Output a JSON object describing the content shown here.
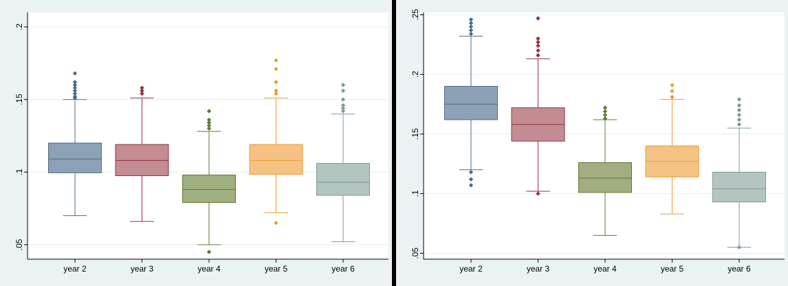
{
  "chart_data": [
    {
      "type": "box",
      "categories": [
        "year 2",
        "year 3",
        "year 4",
        "year 5",
        "year 6"
      ],
      "colors": [
        "#4a6b8e",
        "#91323f",
        "#5e7a32",
        "#f09a2e",
        "#7f9a93"
      ],
      "fills": [
        "#8ea1b6",
        "#c38c93",
        "#9faf81",
        "#f5c285",
        "#b4c4c0"
      ],
      "ylim": [
        0.04,
        0.21
      ],
      "yticks": [
        {
          "v": 0.05,
          "label": ".05"
        },
        {
          "v": 0.1,
          "label": ".1"
        },
        {
          "v": 0.15,
          "label": ".15"
        },
        {
          "v": 0.2,
          "label": ".2"
        }
      ],
      "grid": true,
      "boxes": [
        {
          "min": 0.07,
          "q1": 0.0995,
          "median": 0.109,
          "q3": 0.12,
          "max": 0.15,
          "outliers": [
            0.151,
            0.152,
            0.154,
            0.156,
            0.158,
            0.16,
            0.162,
            0.168
          ]
        },
        {
          "min": 0.066,
          "q1": 0.0975,
          "median": 0.108,
          "q3": 0.119,
          "max": 0.151,
          "outliers": [
            0.154,
            0.156,
            0.158
          ]
        },
        {
          "min": 0.05,
          "q1": 0.079,
          "median": 0.088,
          "q3": 0.098,
          "max": 0.128,
          "outliers": [
            0.045,
            0.13,
            0.132,
            0.134,
            0.136,
            0.142
          ]
        },
        {
          "min": 0.072,
          "q1": 0.0985,
          "median": 0.108,
          "q3": 0.119,
          "max": 0.151,
          "outliers": [
            0.065,
            0.154,
            0.156,
            0.162,
            0.171,
            0.177
          ]
        },
        {
          "min": 0.052,
          "q1": 0.084,
          "median": 0.093,
          "q3": 0.106,
          "max": 0.14,
          "outliers": [
            0.142,
            0.144,
            0.146,
            0.15,
            0.156,
            0.16
          ]
        }
      ]
    },
    {
      "type": "box",
      "categories": [
        "year 2",
        "year 3",
        "year 4",
        "year 5",
        "year 6"
      ],
      "colors": [
        "#4a6b8e",
        "#91323f",
        "#5e7a32",
        "#f09a2e",
        "#7f9a93"
      ],
      "fills": [
        "#8ea1b6",
        "#c38c93",
        "#9faf81",
        "#f5c285",
        "#b4c4c0"
      ],
      "ylim": [
        0.045,
        0.252
      ],
      "yticks": [
        {
          "v": 0.05,
          "label": ".05"
        },
        {
          "v": 0.1,
          "label": ".1"
        },
        {
          "v": 0.15,
          "label": ".15"
        },
        {
          "v": 0.2,
          "label": ".2"
        },
        {
          "v": 0.25,
          "label": ".25"
        }
      ],
      "grid": true,
      "boxes": [
        {
          "min": 0.12,
          "q1": 0.162,
          "median": 0.175,
          "q3": 0.19,
          "max": 0.232,
          "outliers": [
            0.107,
            0.112,
            0.118,
            0.234,
            0.237,
            0.24,
            0.243,
            0.246
          ]
        },
        {
          "min": 0.102,
          "q1": 0.144,
          "median": 0.158,
          "q3": 0.172,
          "max": 0.213,
          "outliers": [
            0.1,
            0.216,
            0.22,
            0.224,
            0.227,
            0.23,
            0.247
          ]
        },
        {
          "min": 0.065,
          "q1": 0.101,
          "median": 0.113,
          "q3": 0.126,
          "max": 0.162,
          "outliers": [
            0.163,
            0.166,
            0.169,
            0.172
          ]
        },
        {
          "min": 0.083,
          "q1": 0.114,
          "median": 0.127,
          "q3": 0.14,
          "max": 0.179,
          "outliers": [
            0.181,
            0.186,
            0.191
          ]
        },
        {
          "min": 0.055,
          "q1": 0.093,
          "median": 0.104,
          "q3": 0.118,
          "max": 0.155,
          "outliers": [
            0.055,
            0.158,
            0.162,
            0.166,
            0.17,
            0.174,
            0.179
          ]
        }
      ]
    }
  ]
}
